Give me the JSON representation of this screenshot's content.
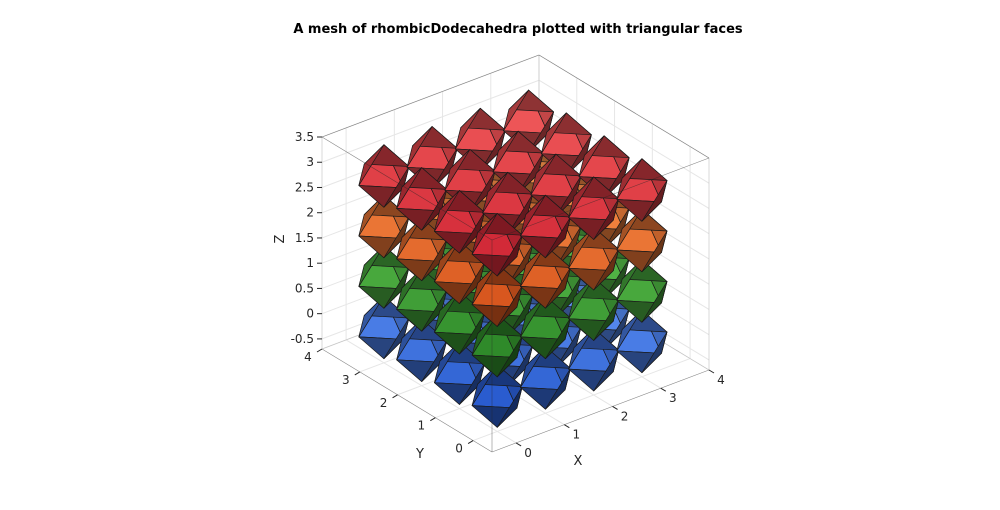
{
  "chart_data": {
    "type": "3d-polyhedra-mesh",
    "title": "A mesh of rhombicDodecahedra plotted with triangular faces",
    "xlabel": "X",
    "ylabel": "Y",
    "zlabel": "Z",
    "xticks": [
      "0",
      "1",
      "2",
      "3",
      "4"
    ],
    "yticks": [
      "0",
      "1",
      "2",
      "3",
      "4"
    ],
    "zticks": [
      "-0.5",
      "0",
      "0.5",
      "1",
      "1.5",
      "2",
      "2.5",
      "3",
      "3.5"
    ],
    "xlim": [
      -0.5,
      4
    ],
    "ylim": [
      -0.5,
      4
    ],
    "zlim": [
      -0.7,
      3.5
    ],
    "grid": true,
    "layers": [
      {
        "z": 0.0,
        "color": "#2a5ccf",
        "light": "#6fa4ff"
      },
      {
        "z": 1.0,
        "color": "#2f8a2a",
        "light": "#66cc55"
      },
      {
        "z": 2.0,
        "color": "#d8571f",
        "light": "#ff9a50"
      },
      {
        "z": 3.0,
        "color": "#d22a38",
        "light": "#f05a5a"
      }
    ],
    "grid_positions": [
      0,
      1,
      2,
      3
    ]
  }
}
